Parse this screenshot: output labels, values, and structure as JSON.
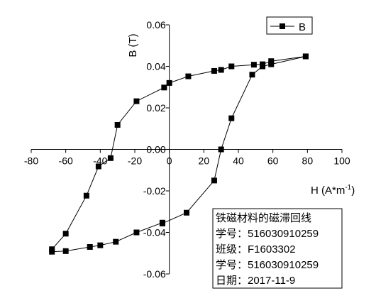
{
  "chart_data": {
    "type": "scatter",
    "xlabel": "H (A*m",
    "xlabel_sup": "-1",
    "xlabel_close": ")",
    "ylabel": "B (T)",
    "xlim": [
      -80,
      100
    ],
    "ylim": [
      -0.06,
      0.06
    ],
    "xticks": [
      -80,
      -60,
      -40,
      -20,
      0,
      20,
      40,
      60,
      80,
      100
    ],
    "xtick_labels": [
      "-80",
      "-60",
      "-40",
      "-20",
      "0",
      "20",
      "40",
      "60",
      "80",
      "100"
    ],
    "yticks": [
      -0.06,
      -0.04,
      -0.02,
      0.0,
      0.02,
      0.04,
      0.06
    ],
    "ytick_labels": [
      "-0.06",
      "-0.04",
      "-0.02",
      "0.00",
      "0.02",
      "0.04",
      "0.06"
    ],
    "legend_position": "top-right",
    "grid": false,
    "series": [
      {
        "name": "B",
        "marker": "square",
        "color": "#000000",
        "x": [
          79,
          59,
          54,
          49,
          36,
          30,
          26,
          11,
          0,
          -3,
          -19,
          -30,
          -34,
          -41,
          -48,
          -60,
          -68,
          -68,
          -60,
          -46,
          -40,
          -31,
          -19,
          -4,
          -4,
          10,
          26,
          30,
          36,
          48,
          54,
          59,
          79
        ],
        "y": [
          0.0448,
          0.0425,
          0.041,
          0.0408,
          0.04,
          0.0383,
          0.0378,
          0.0352,
          0.032,
          0.0298,
          0.0232,
          0.0118,
          -0.0042,
          -0.0082,
          -0.0223,
          -0.0406,
          -0.0481,
          -0.0493,
          -0.049,
          -0.047,
          -0.0462,
          -0.0445,
          -0.04,
          -0.0353,
          -0.0357,
          -0.0305,
          -0.015,
          0.0,
          0.015,
          0.036,
          0.04,
          0.041,
          0.0448
        ]
      }
    ]
  },
  "info_box": {
    "lines": [
      "铁磁材料的磁滞回线",
      "学号：516030910259",
      "班级：F1603302",
      "学号：516030910259",
      "日期：2017-11-9"
    ]
  }
}
